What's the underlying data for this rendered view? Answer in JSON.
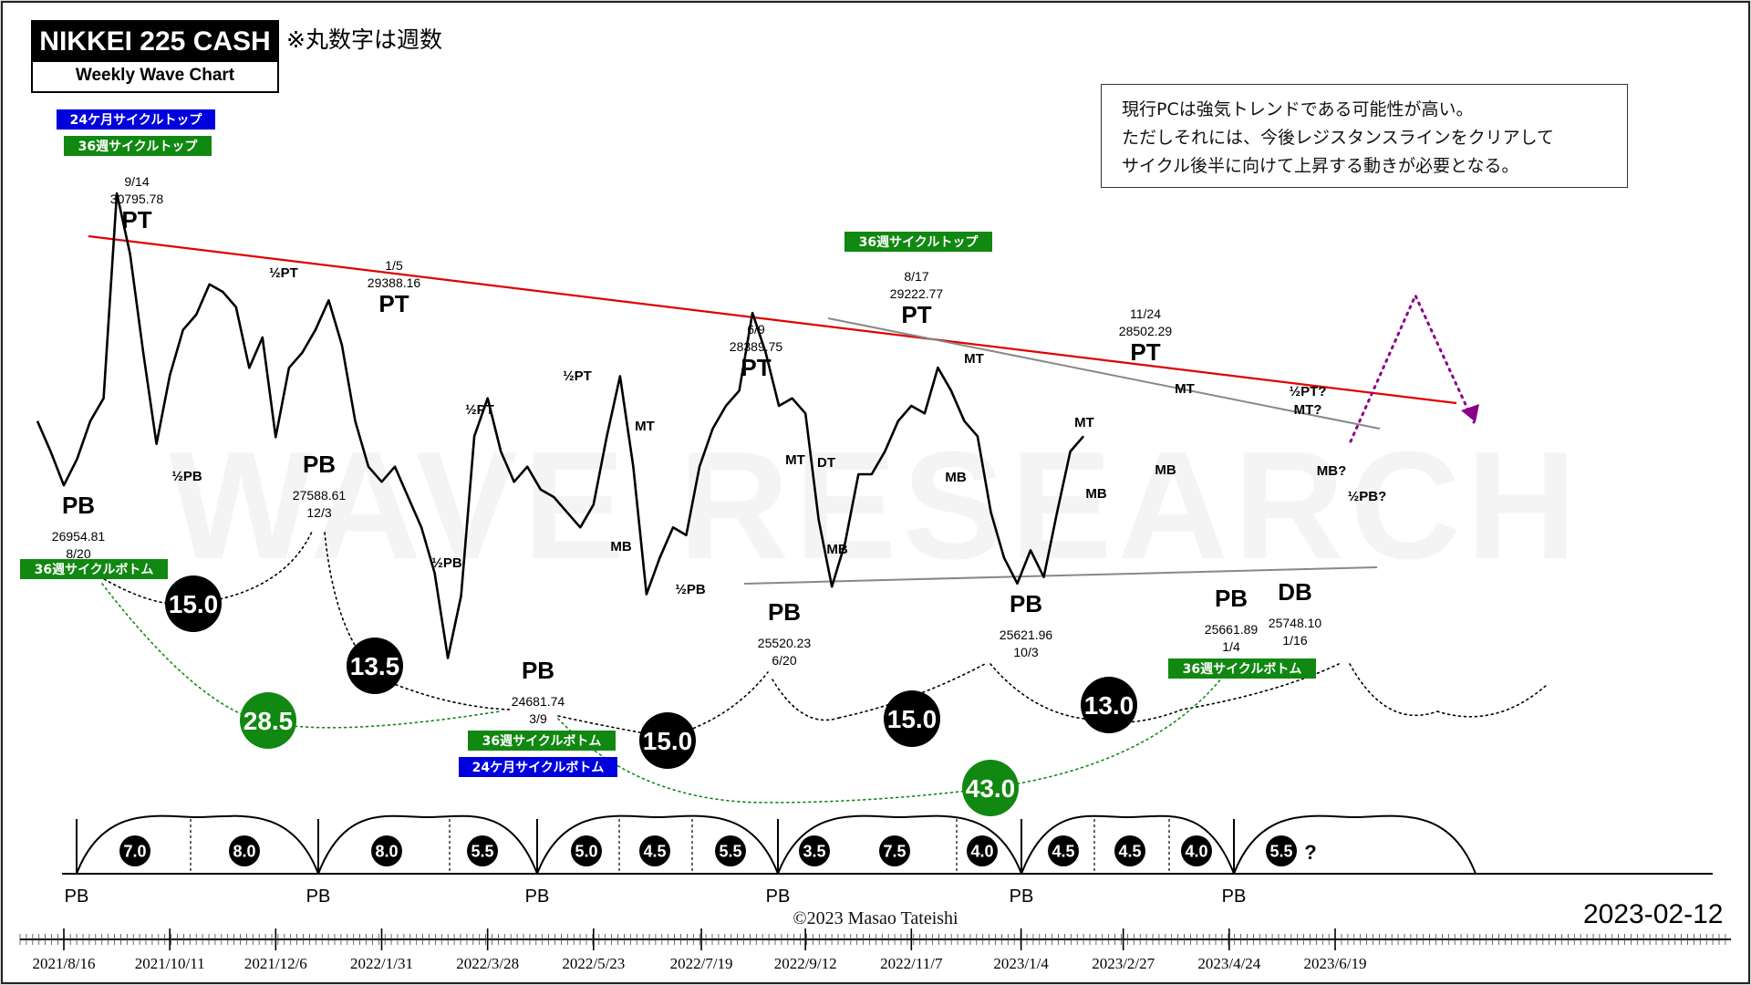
{
  "header": {
    "title": "NIKKEI 225 CASH",
    "subtitle": "Weekly Wave Chart",
    "note": "※丸数字は週数"
  },
  "comment": {
    "lines": [
      "現行PCは強気トレンドである可能性が高い。",
      "ただしそれには、今後レジスタンスラインをクリアして",
      "サイクル後半に向けて上昇する動きが必要となる。"
    ]
  },
  "watermark": "WAVE RESEARCH",
  "date_stamp": "2023-02-12",
  "copyright": "©2023 Masao Tateishi",
  "colors": {
    "price_line": "#000000",
    "resistance_line": "#e00000",
    "channel_line": "#888888",
    "projection": "#8b008b",
    "badge_blue": "#0000dd",
    "badge_green": "#118811",
    "circle_black": "#000000",
    "circle_green": "#118811"
  },
  "chart_data": {
    "type": "line",
    "x_axis": {
      "ticks": [
        "2021/8/16",
        "2021/10/11",
        "2021/12/6",
        "2022/1/31",
        "2022/3/28",
        "2022/5/23",
        "2022/7/19",
        "2022/9/12",
        "2022/11/7",
        "2023/1/4",
        "2023/2/27",
        "2023/4/24",
        "2023/6/19"
      ]
    },
    "series": [
      {
        "x": [
          "2021/8/2",
          "2021/8/9",
          "2021/8/16",
          "2021/8/23",
          "2021/8/30",
          "2021/9/6",
          "2021/9/13",
          "2021/9/20",
          "2021/9/27",
          "2021/10/4",
          "2021/10/11",
          "2021/10/18",
          "2021/10/25",
          "2021/11/1",
          "2021/11/8",
          "2021/11/15",
          "2021/11/22",
          "2021/11/29",
          "2021/12/6",
          "2021/12/13",
          "2021/12/20",
          "2021/12/27",
          "2022/1/3",
          "2022/1/10",
          "2022/1/17",
          "2022/1/24",
          "2022/1/31",
          "2022/2/7",
          "2022/2/14",
          "2022/2/21",
          "2022/2/28",
          "2022/3/7",
          "2022/3/14",
          "2022/3/21",
          "2022/3/28",
          "2022/4/4",
          "2022/4/11",
          "2022/4/18",
          "2022/4/25",
          "2022/5/2",
          "2022/5/9",
          "2022/5/16",
          "2022/5/23",
          "2022/5/30",
          "2022/6/6",
          "2022/6/13",
          "2022/6/20",
          "2022/6/27",
          "2022/7/4",
          "2022/7/11",
          "2022/7/18",
          "2022/7/25",
          "2022/8/1",
          "2022/8/8",
          "2022/8/15",
          "2022/8/22",
          "2022/8/29",
          "2022/9/5",
          "2022/9/12",
          "2022/9/19",
          "2022/9/26",
          "2022/10/3",
          "2022/10/10",
          "2022/10/17",
          "2022/10/24",
          "2022/10/31",
          "2022/11/7",
          "2022/11/14",
          "2022/11/21",
          "2022/11/28",
          "2022/12/5",
          "2022/12/12",
          "2022/12/19",
          "2022/12/26",
          "2023/1/2",
          "2023/1/9",
          "2023/1/16",
          "2023/1/23",
          "2023/1/30",
          "2023/2/6"
        ],
        "y": [
          27800,
          27400,
          26954.81,
          27300,
          27800,
          28100,
          30795.78,
          30000,
          28700,
          27500,
          28400,
          29000,
          29200,
          29600,
          29500,
          29300,
          28500,
          28900,
          27588.61,
          28500,
          28700,
          29000,
          29388.16,
          28800,
          27800,
          27200,
          27000,
          27200,
          26800,
          26400,
          25800,
          24681.74,
          25500,
          27600,
          28100,
          27400,
          27000,
          27200,
          26900,
          26800,
          26600,
          26400,
          26700,
          27600,
          28389.75,
          27200,
          25520.23,
          26000,
          26400,
          26300,
          27200,
          27700,
          28000,
          28200,
          29222.77,
          28700,
          28000,
          28100,
          27900,
          26500,
          25621.96,
          26200,
          27100,
          27100,
          27400,
          27800,
          28000,
          27900,
          28502.29,
          28200,
          27800,
          27600,
          26600,
          26000,
          25661.89,
          26100,
          25748.1,
          26600,
          27400,
          27600
        ]
      }
    ],
    "ylim": [
      24400,
      31300
    ],
    "annotations": [
      {
        "date": "2021/8/16",
        "label": "PB",
        "price": "26954.81",
        "date_label": "8/20"
      },
      {
        "date": "2021/9/13",
        "label": "PT",
        "price": "30795.78",
        "date_label": "9/14"
      },
      {
        "date": "2021/12/6",
        "label": "PB",
        "price": "27588.61",
        "date_label": "12/3"
      },
      {
        "date": "2022/1/3",
        "label": "PT",
        "price": "29388.16",
        "date_label": "1/5"
      },
      {
        "date": "2022/3/7",
        "label": "PB",
        "price": "24681.74",
        "date_label": "3/9"
      },
      {
        "date": "2022/6/6",
        "label": "PT",
        "price": "28389.75",
        "date_label": "6/9"
      },
      {
        "date": "2022/6/20",
        "label": "PB",
        "price": "25520.23",
        "date_label": "6/20"
      },
      {
        "date": "2022/8/15",
        "label": "PT",
        "price": "29222.77",
        "date_label": "8/17"
      },
      {
        "date": "2022/10/3",
        "label": "PB",
        "price": "25621.96",
        "date_label": "10/3"
      },
      {
        "date": "2022/11/21",
        "label": "PT",
        "price": "28502.29",
        "date_label": "11/24"
      },
      {
        "date": "2023/1/2",
        "label": "PB",
        "price": "25661.89",
        "date_label": "1/4"
      },
      {
        "date": "2023/1/16",
        "label": "DB",
        "price": "25748.10",
        "date_label": "1/16"
      }
    ],
    "wave_labels": [
      "½PT",
      "½PB",
      "½PT",
      "½PB",
      "½PT",
      "MT",
      "MB",
      "½PB",
      "MT",
      "DT",
      "MB",
      "MT",
      "MB",
      "MT",
      "MB",
      "MT",
      "MB",
      "½PT?",
      "MT?",
      "MB?",
      "½PB?"
    ],
    "cycle_badges": {
      "top_24m": "24ケ月サイクルトップ",
      "top_36w": "36週サイクルトップ",
      "bottom_36w": "36週サイクルボトム",
      "bottom_24m": "24ケ月サイクルボトム"
    },
    "week_circles_black": [
      "15.0",
      "13.5",
      "15.0",
      "15.0",
      "13.0"
    ],
    "week_circles_green": [
      "28.5",
      "43.0"
    ],
    "cycle_bar": {
      "numbers": [
        "7.0",
        "8.0",
        "8.0",
        "5.5",
        "5.0",
        "4.5",
        "5.5",
        "3.5",
        "7.5",
        "4.0",
        "4.5",
        "4.5",
        "4.0",
        "5.5"
      ],
      "question": "?",
      "pb_label": "PB"
    }
  }
}
